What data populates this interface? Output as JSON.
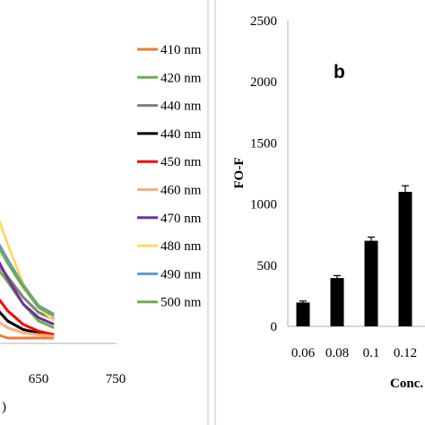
{
  "chart_data": [
    {
      "type": "line",
      "title": "",
      "xlabel_fragment": ")",
      "x_visible_ticks": [
        "650",
        "750"
      ],
      "legend": [
        {
          "name": "410 nm",
          "color": "#ed7d31"
        },
        {
          "name": "420 nm",
          "color": "#70ad47"
        },
        {
          "name": "440 nm",
          "color": "#7f7f7f"
        },
        {
          "name": "440 nm",
          "color": "#000000"
        },
        {
          "name": "450 nm",
          "color": "#ff0000"
        },
        {
          "name": "460 nm",
          "color": "#f4b183"
        },
        {
          "name": "470 nm",
          "color": "#7030a0"
        },
        {
          "name": "480 nm",
          "color": "#ffd966"
        },
        {
          "name": "490 nm",
          "color": "#5b9bd5"
        },
        {
          "name": "500 nm",
          "color": "#70ad47"
        }
      ],
      "series": [
        {
          "name": "410 nm",
          "color": "#ed7d31",
          "x": [
            570,
            590,
            610,
            630,
            650,
            670
          ],
          "y": [
            0.1,
            0.03,
            0.0,
            0.0,
            0.0,
            0.0
          ]
        },
        {
          "name": "420 nm",
          "color": "#70ad47",
          "x": [
            570,
            590,
            610,
            630,
            650,
            670
          ],
          "y": [
            0.55,
            0.45,
            0.33,
            0.2,
            0.1,
            0.06
          ]
        },
        {
          "name": "440 nm",
          "color": "#7f7f7f",
          "x": [
            570,
            590,
            610,
            630,
            650,
            670
          ],
          "y": [
            0.58,
            0.48,
            0.36,
            0.24,
            0.15,
            0.11
          ]
        },
        {
          "name": "440 nm",
          "color": "#000000",
          "x": [
            570,
            590,
            610,
            630,
            650,
            670
          ],
          "y": [
            0.3,
            0.2,
            0.1,
            0.05,
            0.03,
            0.01
          ]
        },
        {
          "name": "450 nm",
          "color": "#ff0000",
          "x": [
            570,
            590,
            610,
            630,
            650,
            670
          ],
          "y": [
            0.4,
            0.28,
            0.16,
            0.08,
            0.04,
            0.02
          ]
        },
        {
          "name": "460 nm",
          "color": "#f4b183",
          "x": [
            570,
            590,
            610,
            630,
            650,
            670
          ],
          "y": [
            0.22,
            0.12,
            0.06,
            0.03,
            0.02,
            0.01
          ]
        },
        {
          "name": "470 nm",
          "color": "#7030a0",
          "x": [
            570,
            590,
            610,
            630,
            650,
            670
          ],
          "y": [
            0.68,
            0.52,
            0.35,
            0.2,
            0.12,
            0.08
          ]
        },
        {
          "name": "480 nm",
          "color": "#ffd966",
          "x": [
            570,
            590,
            610,
            630,
            650,
            670
          ],
          "y": [
            1.0,
            0.8,
            0.55,
            0.32,
            0.18,
            0.1
          ]
        },
        {
          "name": "490 nm",
          "color": "#5b9bd5",
          "x": [
            570,
            590,
            610,
            630,
            650,
            670
          ],
          "y": [
            0.75,
            0.62,
            0.46,
            0.31,
            0.19,
            0.14
          ]
        },
        {
          "name": "500 nm",
          "color": "#70ad47",
          "x": [
            570,
            590,
            610,
            630,
            650,
            670
          ],
          "y": [
            0.7,
            0.6,
            0.44,
            0.3,
            0.18,
            0.13
          ]
        }
      ]
    },
    {
      "type": "bar",
      "panel_label": "b",
      "categories": [
        "0.06",
        "0.08",
        "0.1",
        "0.12"
      ],
      "values": [
        195,
        395,
        700,
        1100
      ],
      "errors": [
        12,
        20,
        30,
        50
      ],
      "ylabel": "FO-F",
      "xlabel": "Conc.",
      "ylim": [
        0,
        2500
      ],
      "yticks": [
        0,
        500,
        1000,
        1500,
        2000,
        2500
      ],
      "bar_color": "#000000"
    }
  ]
}
